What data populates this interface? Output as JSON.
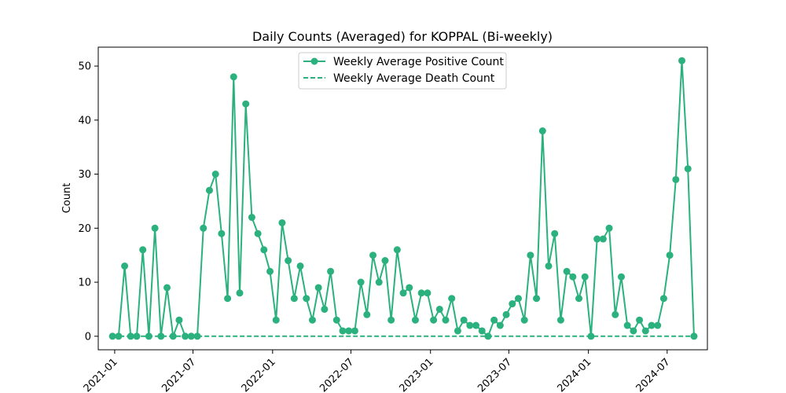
{
  "chart_data": {
    "type": "line",
    "title": "Daily Counts (Averaged) for KOPPAL (Bi-weekly)",
    "xlabel": "",
    "ylabel": "Count",
    "ylim": [
      -2.5,
      53.5
    ],
    "xlim": [
      "2020-11-24",
      "2024-10-02"
    ],
    "y_ticks": [
      0,
      10,
      20,
      30,
      40,
      50
    ],
    "x_ticks": [
      "2021-01",
      "2021-07",
      "2022-01",
      "2022-07",
      "2023-01",
      "2023-07",
      "2024-01",
      "2024-07"
    ],
    "x_tick_dates": [
      "2021-01-01",
      "2021-07-01",
      "2022-01-01",
      "2022-07-01",
      "2023-01-01",
      "2023-07-01",
      "2024-01-01",
      "2024-07-01"
    ],
    "grid": false,
    "legend_position": "top-center",
    "x": [
      "2020-12-27",
      "2021-01-10",
      "2021-01-24",
      "2021-02-07",
      "2021-02-21",
      "2021-03-07",
      "2021-03-21",
      "2021-04-04",
      "2021-04-18",
      "2021-05-02",
      "2021-05-16",
      "2021-05-30",
      "2021-06-13",
      "2021-06-27",
      "2021-07-11",
      "2021-07-25",
      "2021-08-08",
      "2021-08-22",
      "2021-09-05",
      "2021-09-19",
      "2021-10-03",
      "2021-10-17",
      "2021-10-31",
      "2021-11-14",
      "2021-11-28",
      "2021-12-12",
      "2021-12-26",
      "2022-01-09",
      "2022-01-23",
      "2022-02-06",
      "2022-02-20",
      "2022-03-06",
      "2022-03-20",
      "2022-04-03",
      "2022-04-17",
      "2022-05-01",
      "2022-05-15",
      "2022-05-29",
      "2022-06-12",
      "2022-06-26",
      "2022-07-10",
      "2022-07-24",
      "2022-08-07",
      "2022-08-21",
      "2022-09-04",
      "2022-09-18",
      "2022-10-02",
      "2022-10-16",
      "2022-10-30",
      "2022-11-13",
      "2022-11-27",
      "2022-12-11",
      "2022-12-25",
      "2023-01-08",
      "2023-01-22",
      "2023-02-05",
      "2023-02-19",
      "2023-03-05",
      "2023-03-19",
      "2023-04-02",
      "2023-04-16",
      "2023-04-30",
      "2023-05-14",
      "2023-05-28",
      "2023-06-11",
      "2023-06-25",
      "2023-07-09",
      "2023-07-23",
      "2023-08-06",
      "2023-08-20",
      "2023-09-03",
      "2023-09-17",
      "2023-10-01",
      "2023-10-15",
      "2023-10-29",
      "2023-11-12",
      "2023-11-26",
      "2023-12-10",
      "2023-12-24",
      "2024-01-07",
      "2024-01-21",
      "2024-02-04",
      "2024-02-18",
      "2024-03-03",
      "2024-03-17",
      "2024-03-31",
      "2024-04-14",
      "2024-04-28",
      "2024-05-12",
      "2024-05-26",
      "2024-06-09",
      "2024-06-23",
      "2024-07-07",
      "2024-07-21",
      "2024-08-04",
      "2024-08-18",
      "2024-09-01"
    ],
    "series": [
      {
        "name": "Weekly Average Positive Count",
        "color": "#2bb17e",
        "style": "solid-marker",
        "values": [
          0,
          0,
          13,
          0,
          0,
          16,
          0,
          20,
          0,
          9,
          0,
          3,
          0,
          0,
          0,
          20,
          27,
          30,
          19,
          7,
          48,
          8,
          43,
          22,
          19,
          16,
          12,
          3,
          21,
          14,
          7,
          13,
          7,
          3,
          9,
          5,
          12,
          3,
          1,
          1,
          1,
          10,
          4,
          15,
          10,
          14,
          3,
          16,
          8,
          9,
          3,
          8,
          8,
          3,
          5,
          3,
          7,
          1,
          3,
          2,
          2,
          1,
          0,
          3,
          2,
          4,
          6,
          7,
          3,
          15,
          7,
          38,
          13,
          19,
          3,
          12,
          11,
          7,
          11,
          0,
          18,
          18,
          20,
          4,
          11,
          2,
          1,
          3,
          1,
          2,
          2,
          7,
          15,
          29,
          51,
          31,
          0
        ]
      },
      {
        "name": "Weekly Average Death Count",
        "color": "#2bb17e",
        "style": "dashed",
        "values": [
          0,
          0,
          0,
          0,
          0,
          0,
          0,
          0,
          0,
          0,
          0,
          0,
          0,
          0,
          0,
          0,
          0,
          0,
          0,
          0,
          0,
          0,
          0,
          0,
          0,
          0,
          0,
          0,
          0,
          0,
          0,
          0,
          0,
          0,
          0,
          0,
          0,
          0,
          0,
          0,
          0,
          0,
          0,
          0,
          0,
          0,
          0,
          0,
          0,
          0,
          0,
          0,
          0,
          0,
          0,
          0,
          0,
          0,
          0,
          0,
          0,
          0,
          0,
          0,
          0,
          0,
          0,
          0,
          0,
          0,
          0,
          0,
          0,
          0,
          0,
          0,
          0,
          0,
          0,
          0,
          0,
          0,
          0,
          0,
          0,
          0,
          0,
          0,
          0,
          0,
          0,
          0,
          0,
          0,
          0,
          0,
          0
        ]
      }
    ]
  }
}
